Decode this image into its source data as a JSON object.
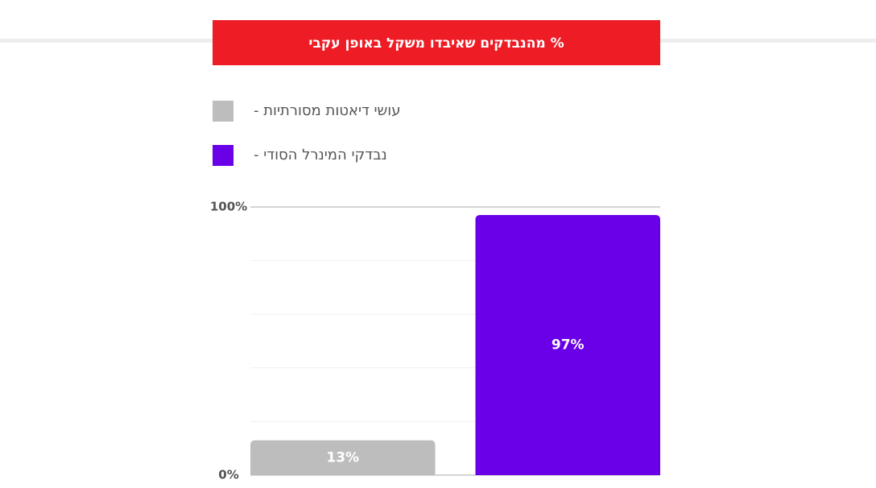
{
  "chart_data": {
    "type": "bar",
    "title": "% מהנבדקים שאיבדו משקל באופן עקבי",
    "categories": [
      null
    ],
    "series": [
      {
        "name": "עושי דיאטות מסורתיות -",
        "color": "#bdbdbd",
        "values": [
          13
        ],
        "value_labels": [
          "13%"
        ]
      },
      {
        "name": "נבדקי המינרל הסודי -",
        "color": "#6a00e8",
        "values": [
          97
        ],
        "value_labels": [
          "97%"
        ]
      }
    ],
    "ylim": [
      0,
      100
    ],
    "yticks": [
      {
        "value": 0,
        "label": "0%"
      },
      {
        "value": 100,
        "label": "100%"
      }
    ],
    "minor_yticks": [
      20,
      40,
      60,
      80
    ],
    "grid": true,
    "legend": "top-left"
  }
}
